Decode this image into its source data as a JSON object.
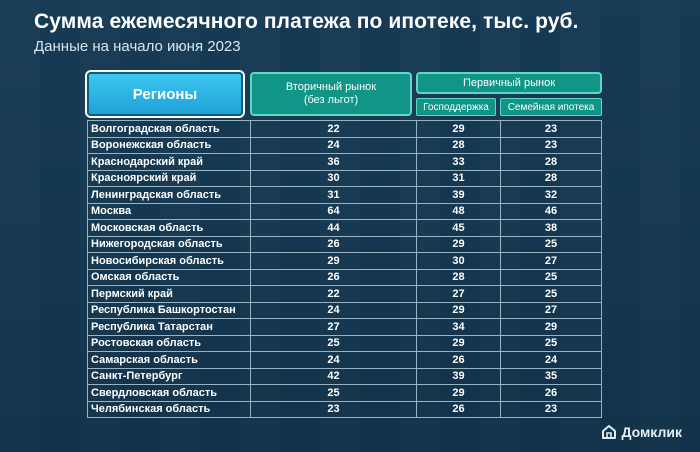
{
  "title": "Сумма ежемесячного платежа по ипотеке, тыс. руб.",
  "subtitle": "Данные на начало июня 2023",
  "headers": {
    "region": "Регионы",
    "secondary": "Вторичный рынок (без льгот)",
    "primary": "Первичный рынок",
    "gov": "Господдержка",
    "family": "Семейная ипотека"
  },
  "rows": [
    {
      "region": "Волгоградская область",
      "secondary": "22",
      "gov": "29",
      "family": "23"
    },
    {
      "region": "Воронежская область",
      "secondary": "24",
      "gov": "28",
      "family": "23"
    },
    {
      "region": "Краснодарский край",
      "secondary": "36",
      "gov": "33",
      "family": "28"
    },
    {
      "region": "Красноярский край",
      "secondary": "30",
      "gov": "31",
      "family": "28"
    },
    {
      "region": "Ленинградская область",
      "secondary": "31",
      "gov": "39",
      "family": "32"
    },
    {
      "region": "Москва",
      "secondary": "64",
      "gov": "48",
      "family": "46"
    },
    {
      "region": "Московская область",
      "secondary": "44",
      "gov": "45",
      "family": "38"
    },
    {
      "region": "Нижегородская область",
      "secondary": "26",
      "gov": "29",
      "family": "25"
    },
    {
      "region": "Новосибирская область",
      "secondary": "29",
      "gov": "30",
      "family": "27"
    },
    {
      "region": "Омская область",
      "secondary": "26",
      "gov": "28",
      "family": "25"
    },
    {
      "region": "Пермский край",
      "secondary": "22",
      "gov": "27",
      "family": "25"
    },
    {
      "region": "Республика Башкортостан",
      "secondary": "24",
      "gov": "29",
      "family": "27"
    },
    {
      "region": "Республика Татарстан",
      "secondary": "27",
      "gov": "34",
      "family": "29"
    },
    {
      "region": "Ростовская область",
      "secondary": "25",
      "gov": "29",
      "family": "25"
    },
    {
      "region": "Самарская область",
      "secondary": "24",
      "gov": "26",
      "family": "24"
    },
    {
      "region": "Санкт-Петербург",
      "secondary": "42",
      "gov": "39",
      "family": "35"
    },
    {
      "region": "Свердловская область",
      "secondary": "25",
      "gov": "29",
      "family": "26"
    },
    {
      "region": "Челябинская область",
      "secondary": "23",
      "gov": "26",
      "family": "23"
    }
  ],
  "brand": "Домклик",
  "brand_icon": "house-logo-icon"
}
